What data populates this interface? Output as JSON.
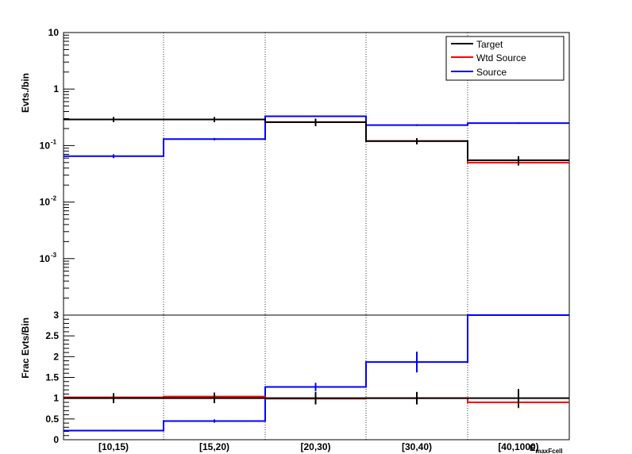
{
  "chart_data": [
    {
      "type": "line",
      "panel": "top",
      "ylabel": "Evts./bin",
      "yscale": "log",
      "ylim": [
        0.0001,
        10
      ],
      "ytick_labels": [
        {
          "v": 10,
          "base": "10",
          "exp": ""
        },
        {
          "v": 1,
          "base": "1",
          "exp": ""
        },
        {
          "v": 0.1,
          "base": "10",
          "exp": "-1"
        },
        {
          "v": 0.01,
          "base": "10",
          "exp": "-2"
        },
        {
          "v": 0.001,
          "base": "10",
          "exp": "-3"
        }
      ],
      "categories": [
        "[10,15)",
        "[15,20)",
        "[20,30)",
        "[30,40)",
        "[40,1000)"
      ],
      "grid": "vertical dotted at bin edges",
      "legend": {
        "placement": "top-right",
        "entries": [
          {
            "label": "Target",
            "color": "#000000"
          },
          {
            "label": "Wtd Source",
            "color": "#ff0000"
          },
          {
            "label": "Source",
            "color": "#0000ff"
          }
        ]
      },
      "series": [
        {
          "name": "Target",
          "color": "#000000",
          "values": [
            0.29,
            0.29,
            0.26,
            0.12,
            0.055
          ],
          "errors": [
            0.03,
            0.03,
            0.04,
            0.015,
            0.01
          ]
        },
        {
          "name": "Wtd Source",
          "color": "#ff0000",
          "values": [
            0.29,
            0.29,
            0.26,
            0.12,
            0.05
          ],
          "errors": [
            0.02,
            0.02,
            0.02,
            0.01,
            0.006
          ]
        },
        {
          "name": "Source",
          "color": "#0000ff",
          "values": [
            0.065,
            0.13,
            0.33,
            0.23,
            0.25
          ],
          "errors": [
            0.005,
            0.006,
            0.01,
            0.008,
            0.008
          ]
        }
      ]
    },
    {
      "type": "line",
      "panel": "bottom",
      "ylabel": "Frac Evts/Bin",
      "xlabel": "E_maxFcell",
      "ylim": [
        0,
        3
      ],
      "yticks": [
        "0",
        "0.5",
        "1",
        "1.5",
        "2",
        "2.5",
        "3"
      ],
      "categories": [
        "[10,15)",
        "[15,20)",
        "[20,30)",
        "[30,40)",
        "[40,1000)"
      ],
      "series": [
        {
          "name": "Target",
          "color": "#000000",
          "values": [
            1.0,
            1.0,
            1.0,
            1.0,
            1.0
          ],
          "errors": [
            0.12,
            0.12,
            0.15,
            0.15,
            0.22
          ]
        },
        {
          "name": "Wtd Source",
          "color": "#ff0000",
          "values": [
            1.02,
            1.04,
            0.99,
            1.0,
            0.9
          ],
          "errors": [
            0.1,
            0.1,
            0.1,
            0.1,
            0.14
          ]
        },
        {
          "name": "Source",
          "color": "#0000ff",
          "values": [
            0.22,
            0.45,
            1.27,
            1.87,
            3.0
          ],
          "errors": [
            0.02,
            0.04,
            0.1,
            0.25,
            0.3
          ]
        }
      ]
    }
  ]
}
